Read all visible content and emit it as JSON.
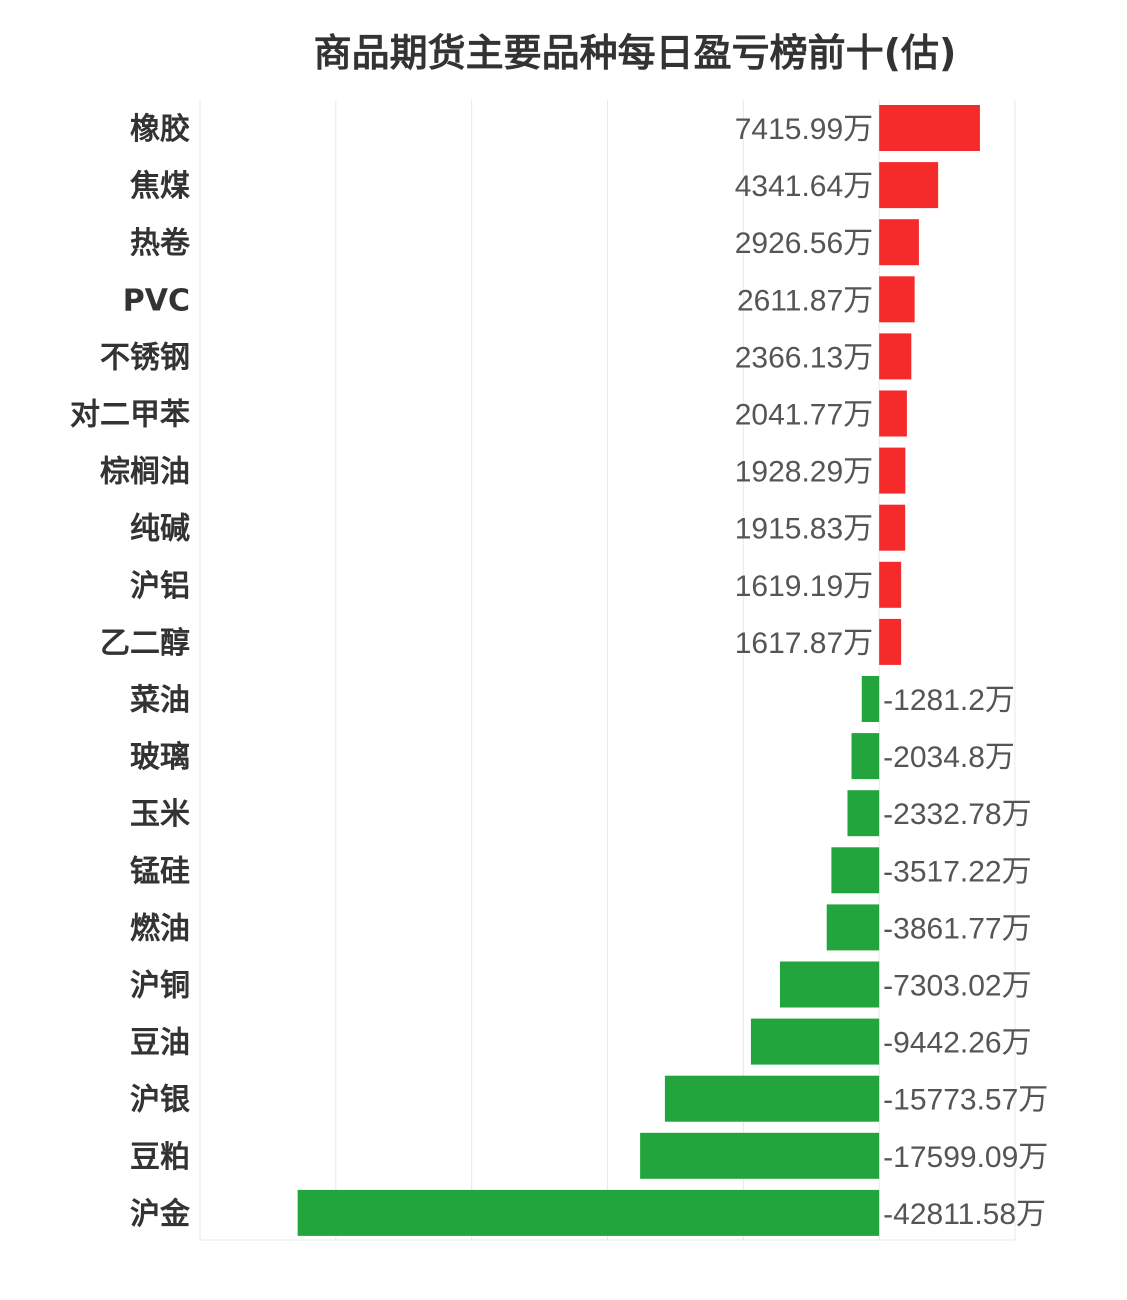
{
  "chart_data": {
    "type": "bar",
    "orientation": "horizontal",
    "title": "商品期货主要品种每日盈亏榜前十(估)",
    "unit": "万",
    "categories": [
      "橡胶",
      "焦煤",
      "热卷",
      "PVC",
      "不锈钢",
      "对二甲苯",
      "棕榈油",
      "纯碱",
      "沪铝",
      "乙二醇",
      "菜油",
      "玻璃",
      "玉米",
      "锰硅",
      "燃油",
      "沪铜",
      "豆油",
      "沪银",
      "豆粕",
      "沪金"
    ],
    "values": [
      7415.99,
      4341.64,
      2926.56,
      2611.87,
      2366.13,
      2041.77,
      1928.29,
      1915.83,
      1619.19,
      1617.87,
      -1281.2,
      -2034.8,
      -2332.78,
      -3517.22,
      -3861.77,
      -7303.02,
      -9442.26,
      -15773.57,
      -17599.09,
      -42811.58
    ],
    "value_labels": [
      "7415.99万",
      "4341.64万",
      "2926.56万",
      "2611.87万",
      "2366.13万",
      "2041.77万",
      "1928.29万",
      "1915.83万",
      "1619.19万",
      "1617.87万",
      "-1281.2万",
      "-2034.8万",
      "-2332.78万",
      "-3517.22万",
      "-3861.77万",
      "-7303.02万",
      "-9442.26万",
      "-15773.57万",
      "-17599.09万",
      "-42811.58万"
    ],
    "xlim": [
      -50000,
      10000
    ],
    "grid": true,
    "colors": {
      "positive": "#f52a2a",
      "negative": "#22a53d"
    }
  }
}
